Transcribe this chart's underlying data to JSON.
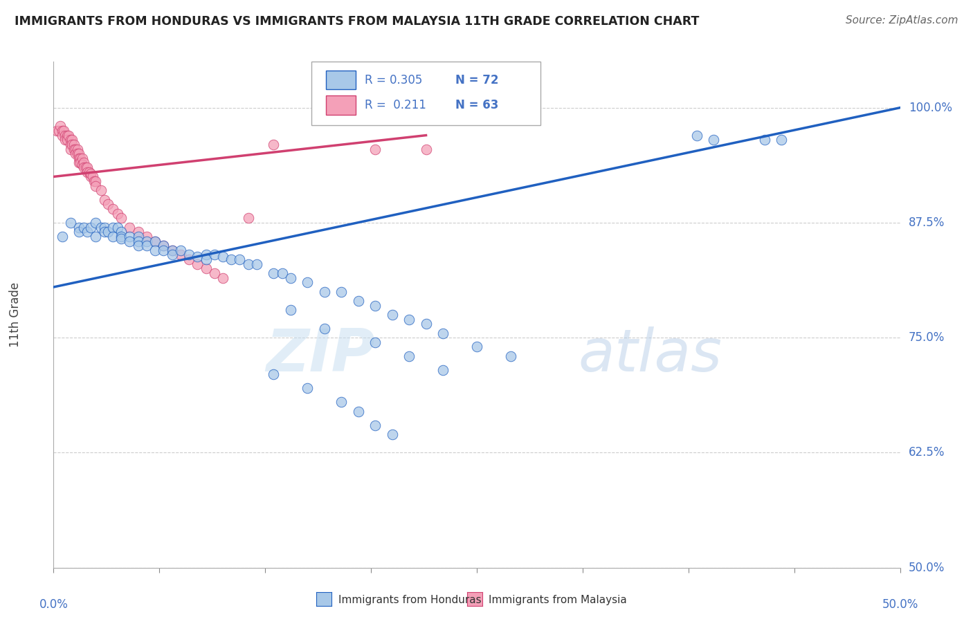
{
  "title": "IMMIGRANTS FROM HONDURAS VS IMMIGRANTS FROM MALAYSIA 11TH GRADE CORRELATION CHART",
  "source": "Source: ZipAtlas.com",
  "ylabel": "11th Grade",
  "ylabel_ticks": [
    "100.0%",
    "87.5%",
    "75.0%",
    "62.5%",
    "50.0%"
  ],
  "ylabel_values": [
    1.0,
    0.875,
    0.75,
    0.625,
    0.5
  ],
  "xmin": 0.0,
  "xmax": 0.5,
  "ymin": 0.5,
  "ymax": 1.05,
  "legend_r1": "R = 0.305",
  "legend_n1": "N = 72",
  "legend_r2": "R =  0.211",
  "legend_n2": "N = 63",
  "legend_label1": "Immigrants from Honduras",
  "legend_label2": "Immigrants from Malaysia",
  "color_blue": "#a8c8e8",
  "color_pink": "#f4a0b8",
  "color_blue_line": "#2060c0",
  "color_pink_line": "#d04070",
  "watermark_zip": "ZIP",
  "watermark_atlas": "atlas",
  "blue_x": [
    0.005,
    0.01,
    0.015,
    0.015,
    0.018,
    0.02,
    0.022,
    0.025,
    0.025,
    0.028,
    0.03,
    0.03,
    0.032,
    0.035,
    0.035,
    0.038,
    0.04,
    0.04,
    0.04,
    0.045,
    0.045,
    0.05,
    0.05,
    0.05,
    0.055,
    0.055,
    0.06,
    0.06,
    0.065,
    0.065,
    0.07,
    0.07,
    0.075,
    0.08,
    0.085,
    0.09,
    0.09,
    0.095,
    0.1,
    0.105,
    0.11,
    0.115,
    0.12,
    0.13,
    0.135,
    0.14,
    0.15,
    0.16,
    0.17,
    0.18,
    0.19,
    0.2,
    0.21,
    0.22,
    0.23,
    0.25,
    0.27,
    0.14,
    0.16,
    0.19,
    0.21,
    0.23,
    0.13,
    0.15,
    0.17,
    0.18,
    0.19,
    0.2,
    0.38,
    0.39,
    0.42,
    0.43
  ],
  "blue_y": [
    0.86,
    0.875,
    0.87,
    0.865,
    0.87,
    0.865,
    0.87,
    0.875,
    0.86,
    0.87,
    0.87,
    0.865,
    0.865,
    0.87,
    0.86,
    0.87,
    0.865,
    0.86,
    0.858,
    0.86,
    0.855,
    0.86,
    0.855,
    0.85,
    0.855,
    0.85,
    0.855,
    0.845,
    0.85,
    0.845,
    0.845,
    0.84,
    0.845,
    0.84,
    0.838,
    0.84,
    0.835,
    0.84,
    0.838,
    0.835,
    0.835,
    0.83,
    0.83,
    0.82,
    0.82,
    0.815,
    0.81,
    0.8,
    0.8,
    0.79,
    0.785,
    0.775,
    0.77,
    0.765,
    0.755,
    0.74,
    0.73,
    0.78,
    0.76,
    0.745,
    0.73,
    0.715,
    0.71,
    0.695,
    0.68,
    0.67,
    0.655,
    0.645,
    0.97,
    0.965,
    0.965,
    0.965
  ],
  "pink_x": [
    0.002,
    0.003,
    0.004,
    0.005,
    0.005,
    0.006,
    0.007,
    0.007,
    0.008,
    0.008,
    0.009,
    0.01,
    0.01,
    0.01,
    0.011,
    0.011,
    0.012,
    0.012,
    0.013,
    0.013,
    0.014,
    0.014,
    0.015,
    0.015,
    0.015,
    0.016,
    0.016,
    0.017,
    0.017,
    0.018,
    0.018,
    0.019,
    0.02,
    0.02,
    0.021,
    0.022,
    0.022,
    0.023,
    0.024,
    0.025,
    0.025,
    0.028,
    0.03,
    0.032,
    0.035,
    0.038,
    0.04,
    0.045,
    0.05,
    0.055,
    0.06,
    0.065,
    0.07,
    0.075,
    0.08,
    0.085,
    0.09,
    0.095,
    0.1,
    0.115,
    0.13,
    0.19,
    0.22
  ],
  "pink_y": [
    0.975,
    0.975,
    0.98,
    0.975,
    0.97,
    0.975,
    0.97,
    0.965,
    0.97,
    0.965,
    0.97,
    0.965,
    0.96,
    0.955,
    0.965,
    0.96,
    0.96,
    0.955,
    0.955,
    0.95,
    0.955,
    0.95,
    0.95,
    0.945,
    0.94,
    0.945,
    0.94,
    0.945,
    0.938,
    0.94,
    0.935,
    0.935,
    0.935,
    0.93,
    0.93,
    0.925,
    0.928,
    0.925,
    0.92,
    0.92,
    0.915,
    0.91,
    0.9,
    0.895,
    0.89,
    0.885,
    0.88,
    0.87,
    0.865,
    0.86,
    0.855,
    0.85,
    0.845,
    0.84,
    0.835,
    0.83,
    0.825,
    0.82,
    0.815,
    0.88,
    0.96,
    0.955,
    0.955
  ],
  "blue_line_x": [
    0.0,
    0.5
  ],
  "blue_line_y": [
    0.805,
    1.0
  ],
  "pink_line_x": [
    0.0,
    0.22
  ],
  "pink_line_y": [
    0.925,
    0.97
  ]
}
